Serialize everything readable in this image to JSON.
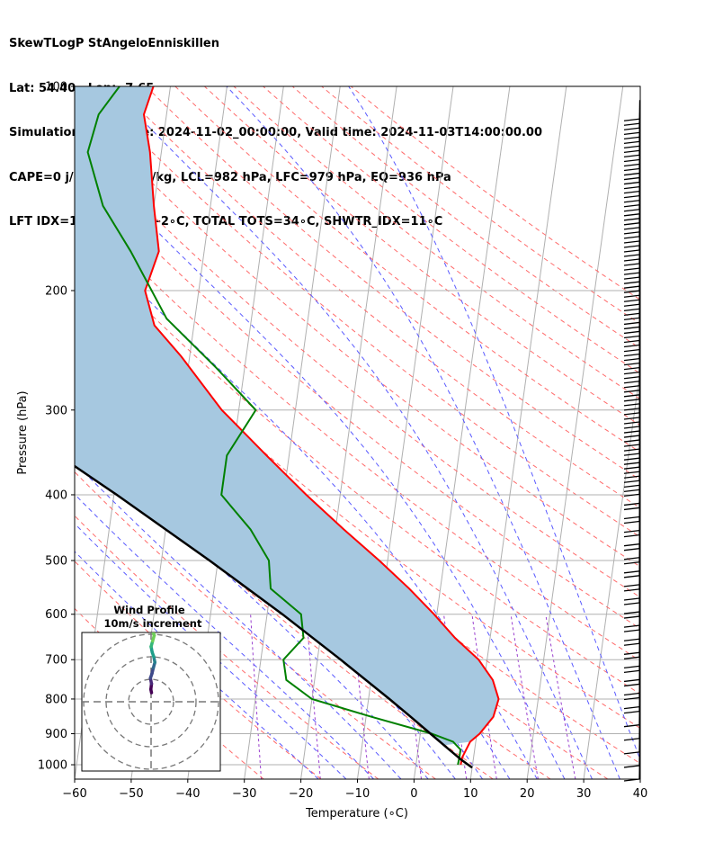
{
  "header": {
    "line1": "SkewTLogP StAngeloEnniskillen",
    "line2": "Lat: 54.40   Lon: -7.65",
    "line3": "Simulation start time: 2024-11-02_00:00:00, Valid time: 2024-11-03T14:00:00.00",
    "line4": "CAPE=0 j/kg, CIN=-2 j/kg, LCL=982 hPa, LFC=979 hPa, EQ=936 hPa",
    "line5": "LFT IDX=14∘C, K IDX=-2∘C, TOTAL TOTS=34∘C, SHWTR_IDX=11∘C"
  },
  "colors": {
    "temperature": "#ff0000",
    "dewpoint": "#008000",
    "parcel": "#000000",
    "cape_fill": "#a6c8e0",
    "dry_adiabat": "#ff6b6b",
    "moist_adiabat": "#5a5aff",
    "mixing_ratio": "#9a3fcf",
    "isotherm": "#b0b0b0"
  },
  "chart_data": [
    {
      "type": "line",
      "subtype": "skew-T log-P diagram",
      "xlabel": "Temperature (∘C)",
      "ylabel": "Pressure (hPa)",
      "xlim": [
        -60,
        40
      ],
      "ylim": [
        1050,
        100
      ],
      "y_scale": "log",
      "grid": true,
      "x_ticks": [
        "−60",
        "−50",
        "−40",
        "−30",
        "−20",
        "−10",
        "0",
        "10",
        "20",
        "30",
        "40"
      ],
      "y_ticks": [
        "100",
        "200",
        "300",
        "400",
        "500",
        "600",
        "700",
        "800",
        "900",
        "1000"
      ],
      "series": [
        {
          "key": "temperature",
          "pressure": [
            1000,
            975,
            950,
            925,
            900,
            850,
            800,
            750,
            700,
            650,
            600,
            550,
            500,
            450,
            400,
            350,
            300,
            250,
            225,
            200,
            175,
            150,
            125,
            110,
            100
          ],
          "values": [
            7.9,
            8.0,
            8.5,
            9.0,
            10.5,
            12.5,
            13.0,
            11.5,
            8.5,
            3.8,
            -0.5,
            -5.5,
            -11.5,
            -18.5,
            -26.0,
            -34.0,
            -43.0,
            -51.5,
            -57.0,
            -59.5,
            -58.0,
            -60.0,
            -62.0,
            -64.0,
            -63.0
          ]
        },
        {
          "key": "dewpoint",
          "pressure": [
            1000,
            975,
            950,
            925,
            900,
            850,
            800,
            750,
            700,
            650,
            600,
            550,
            500,
            450,
            400,
            350,
            300,
            260,
            220,
            175,
            150,
            125,
            110,
            100
          ],
          "values": [
            7.4,
            7.5,
            7.5,
            6.0,
            2.0,
            -9.0,
            -20.0,
            -25.0,
            -26.0,
            -23.0,
            -24.0,
            -30.0,
            -31.0,
            -35.0,
            -41.0,
            -41.0,
            -37.0,
            -45.0,
            -55.0,
            -63.0,
            -69.0,
            -73.0,
            -72.0,
            -69.0
          ]
        },
        {
          "key": "parcel",
          "pressure": [
            1010,
            982,
            950,
            900,
            850,
            800,
            700,
            600,
            500,
            400,
            300,
            250,
            200,
            150,
            100
          ],
          "values": [
            10.0,
            7.8,
            5.5,
            1.8,
            -2.1,
            -6.3,
            -15.9,
            -27.3,
            -41.5,
            -59.5,
            -83.6,
            -99.7,
            -119.6,
            -145.2,
            -180.6
          ]
        }
      ],
      "wind_barbs": {
        "location": "right edge",
        "pressure_range": [
          1050,
          100
        ]
      }
    },
    {
      "type": "scatter",
      "subtype": "hodograph",
      "title": "Wind Profile",
      "subtitle": "10m/s increment",
      "rings": [
        10,
        20,
        30
      ],
      "u": [
        -0.5,
        -0.3,
        -0.4,
        0.3,
        0.8,
        1.0,
        1.5,
        1.2,
        0.6,
        0.2,
        -0.1,
        0.3,
        0.8,
        1.5,
        0.8,
        0.0,
        -0.5,
        0.1,
        -1.0,
        -0.5
      ],
      "v": [
        3.0,
        4.5,
        5.2,
        5.8,
        7.0,
        9.0,
        10.5,
        12.0,
        13.5,
        15.0,
        16.0,
        18.0,
        20.0,
        22.0,
        24.0,
        25.5,
        27.0,
        29.0,
        29.5,
        30.0
      ]
    }
  ]
}
